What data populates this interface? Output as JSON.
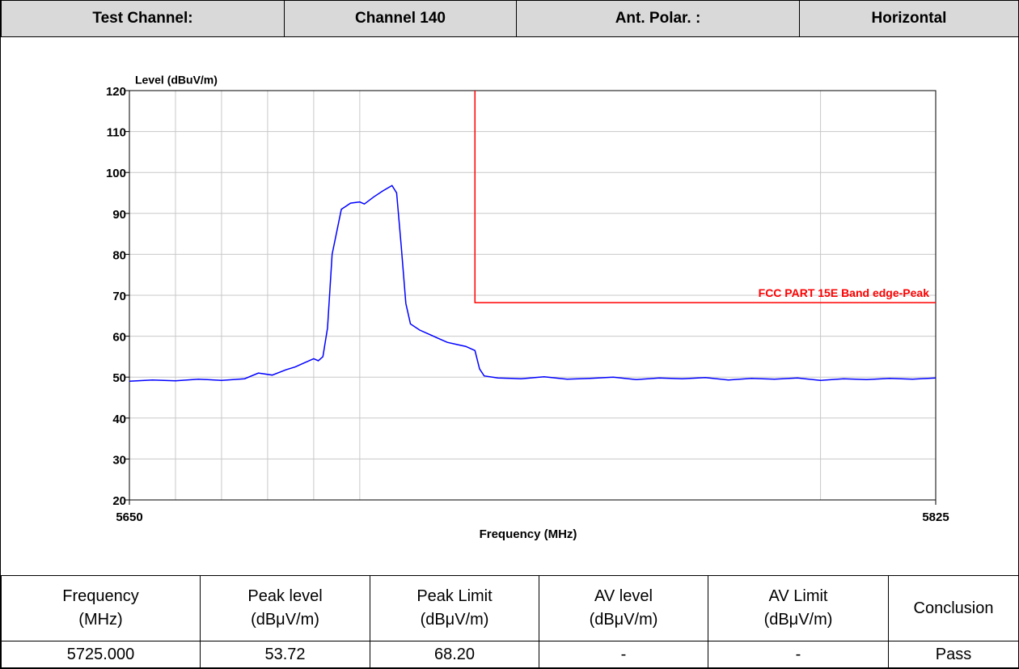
{
  "header": {
    "cells": [
      "Test Channel:",
      "Channel 140",
      "Ant. Polar. :",
      "Horizontal"
    ]
  },
  "chart_data": {
    "type": "line",
    "y_label": "Level (dBuV/m)",
    "x_label": "Frequency (MHz)",
    "xlim": [
      5650,
      5825
    ],
    "xticks": [
      5650,
      5825
    ],
    "xgrid": [
      5660,
      5670,
      5680,
      5690,
      5700,
      5800
    ],
    "ylim": [
      20,
      120
    ],
    "yticks": [
      20,
      30,
      40,
      50,
      60,
      70,
      80,
      90,
      100,
      110,
      120
    ],
    "grid": true,
    "series": [
      {
        "name": null,
        "color": "#0000ff",
        "x": [
          5650,
          5655,
          5660,
          5665,
          5670,
          5675,
          5678,
          5681,
          5684,
          5686,
          5688,
          5690,
          5691,
          5692,
          5693,
          5694,
          5696,
          5698,
          5700,
          5701,
          5703,
          5705,
          5707,
          5708,
          5709,
          5710,
          5711,
          5713,
          5715,
          5717,
          5719,
          5721,
          5723,
          5725,
          5726,
          5727,
          5730,
          5735,
          5740,
          5745,
          5750,
          5755,
          5760,
          5765,
          5770,
          5775,
          5780,
          5785,
          5790,
          5795,
          5800,
          5805,
          5810,
          5815,
          5820,
          5825
        ],
        "values": [
          49,
          49.3,
          49.1,
          49.5,
          49.2,
          49.6,
          51,
          50.5,
          51.8,
          52.5,
          53.5,
          54.5,
          54,
          55,
          62,
          80,
          91,
          92.5,
          92.8,
          92.3,
          94,
          95.5,
          96.8,
          95,
          82,
          68,
          63,
          61.5,
          60.5,
          59.5,
          58.5,
          58,
          57.5,
          56.5,
          52,
          50.3,
          49.8,
          49.6,
          50.1,
          49.5,
          49.7,
          50,
          49.4,
          49.8,
          49.6,
          49.9,
          49.3,
          49.7,
          49.5,
          49.8,
          49.2,
          49.6,
          49.4,
          49.7,
          49.5,
          49.8
        ]
      },
      {
        "name": "FCC PART 15E Band edge-Peak",
        "color": "#ff0000",
        "x": [
          5725,
          5725,
          5825
        ],
        "values": [
          120,
          68.2,
          68.2
        ]
      }
    ]
  },
  "table": {
    "headers": [
      [
        "Frequency",
        "(MHz)"
      ],
      [
        "Peak level",
        "(dBμV/m)"
      ],
      [
        "Peak Limit",
        "(dBμV/m)"
      ],
      [
        "AV level",
        "(dBμV/m)"
      ],
      [
        "AV Limit",
        "(dBμV/m)"
      ],
      [
        "Conclusion"
      ]
    ],
    "rows": [
      [
        "5725.000",
        "53.72",
        "68.20",
        "-",
        "-",
        "Pass"
      ]
    ]
  }
}
